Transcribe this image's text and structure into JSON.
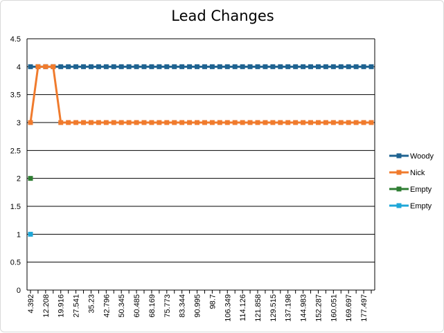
{
  "chart_data": {
    "type": "line",
    "title": "Lead Changes",
    "xlabel": "",
    "ylabel": "",
    "ylim": [
      0,
      4.5
    ],
    "yticks": [
      "0",
      "0.5",
      "1",
      "1.5",
      "2",
      "2.5",
      "3",
      "3.5",
      "4",
      "4.5"
    ],
    "grid": true,
    "legend_position": "right",
    "x_tick_labels": [
      "4.392",
      "12.208",
      "19.916",
      "27.541",
      "35.23",
      "42.796",
      "50.345",
      "60.485",
      "68.169",
      "75.773",
      "83.344",
      "90.995",
      "98.7",
      "106.349",
      "114.126",
      "121.858",
      "129.515",
      "137.198",
      "144.983",
      "152.287",
      "160.051",
      "169.697",
      "177.497"
    ],
    "num_points": 46,
    "series": [
      {
        "name": "Woody",
        "color": "#1f6391",
        "values": [
          4,
          4,
          4,
          4,
          4,
          4,
          4,
          4,
          4,
          4,
          4,
          4,
          4,
          4,
          4,
          4,
          4,
          4,
          4,
          4,
          4,
          4,
          4,
          4,
          4,
          4,
          4,
          4,
          4,
          4,
          4,
          4,
          4,
          4,
          4,
          4,
          4,
          4,
          4,
          4,
          4,
          4,
          4,
          4,
          4,
          4
        ]
      },
      {
        "name": "Nick",
        "color": "#f07b2d",
        "values": [
          3,
          4,
          4,
          4,
          3,
          3,
          3,
          3,
          3,
          3,
          3,
          3,
          3,
          3,
          3,
          3,
          3,
          3,
          3,
          3,
          3,
          3,
          3,
          3,
          3,
          3,
          3,
          3,
          3,
          3,
          3,
          3,
          3,
          3,
          3,
          3,
          3,
          3,
          3,
          3,
          3,
          3,
          3,
          3,
          3,
          3
        ]
      },
      {
        "name": "Empty",
        "color": "#2e7d32",
        "values": [
          2
        ]
      },
      {
        "name": "Empty",
        "color": "#1ea7d8",
        "values": [
          1
        ]
      }
    ]
  }
}
